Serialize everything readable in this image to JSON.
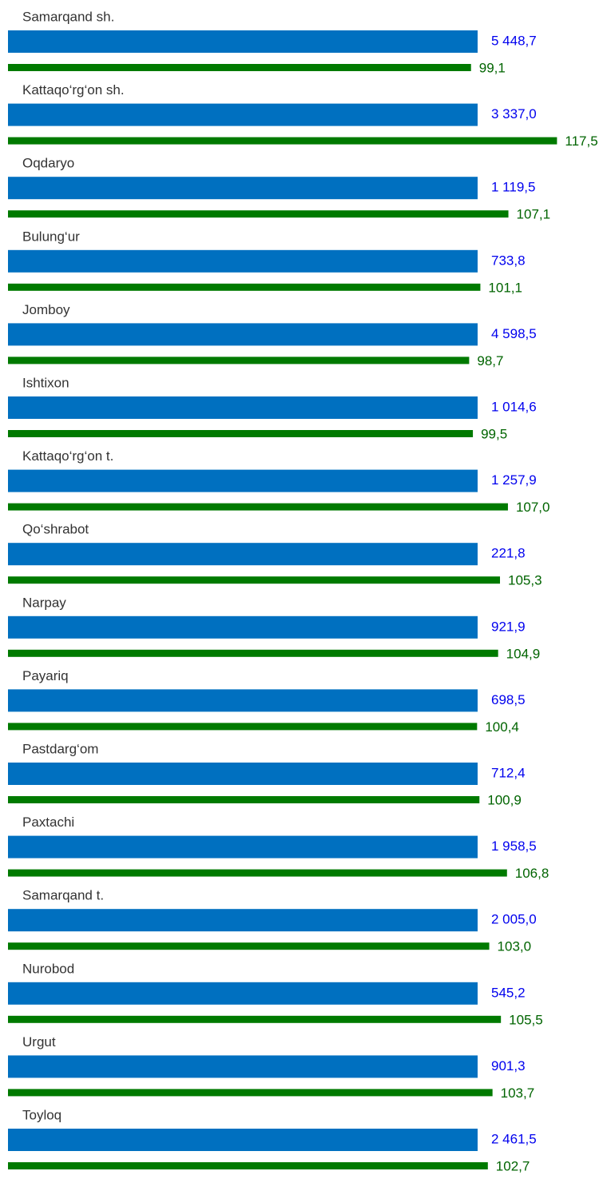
{
  "chart_data": {
    "type": "bar",
    "categories": [
      "Samarqand sh.",
      "Kattaqo‘rg‘on sh.",
      "Oqdaryo",
      "Bulung‘ur",
      "Jomboy",
      "Ishtixon",
      "Kattaqo‘rg‘on t.",
      "Qo‘shrabot",
      "Narpay",
      "Payariq",
      "Pastdarg‘om",
      "Paxtachi",
      "Samarqand t.",
      "Nurobod",
      "Urgut",
      "Toyloq"
    ],
    "series": [
      {
        "color": "#0070c0",
        "label_color": "#0000ee",
        "values": [
          5448.7,
          3337.0,
          1119.5,
          733.8,
          4598.5,
          1014.6,
          1257.9,
          221.8,
          921.9,
          698.5,
          712.4,
          1958.5,
          2005.0,
          545.2,
          901.3,
          2461.5
        ],
        "value_labels": [
          "5 448,7",
          "3 337,0",
          "1 119,5",
          "733,8",
          "4 598,5",
          "1 014,6",
          "1 257,9",
          "221,8",
          "921,9",
          "698,5",
          "712,4",
          "1 958,5",
          "2 005,0",
          "545,2",
          "901,3",
          "2 461,5"
        ]
      },
      {
        "color": "#007a00",
        "label_color": "#006400",
        "values": [
          99.1,
          117.5,
          107.1,
          101.1,
          98.7,
          99.5,
          107.0,
          105.3,
          104.9,
          100.4,
          100.9,
          106.8,
          103.0,
          105.5,
          103.7,
          102.7
        ],
        "value_labels": [
          "99,1",
          "117,5",
          "107,1",
          "101,1",
          "98,7",
          "99,5",
          "107,0",
          "105,3",
          "104,9",
          "100,4",
          "100,9",
          "106,8",
          "103,0",
          "105,5",
          "103,7",
          "102,7"
        ]
      }
    ],
    "xlim": [
      0,
      120
    ]
  }
}
